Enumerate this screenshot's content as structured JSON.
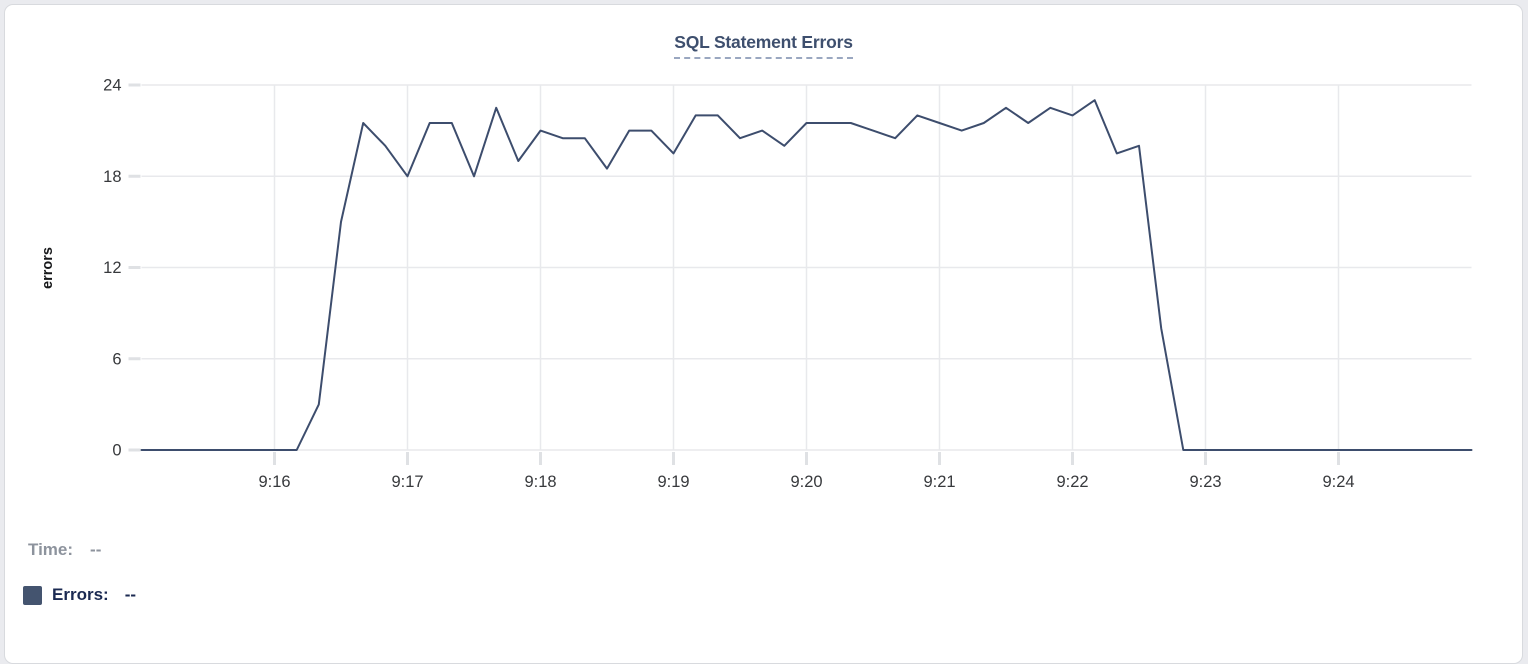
{
  "card": {
    "title": "SQL Statement Errors"
  },
  "tooltip": {
    "time_label": "Time:",
    "time_value": "--",
    "errors_label": "Errors:",
    "errors_value": "--"
  },
  "colors": {
    "line": "#3d4d6d",
    "swatch": "#44546f",
    "title": "#3e4f6e",
    "title_underline": "#9aa7c0",
    "grid": "#e8e9ec",
    "tick": "#dfe1e4",
    "axis_text": "#37393c",
    "time_text": "#8d939d",
    "errors_text": "#1b2a52",
    "card_border": "#d8dade",
    "card_bg": "#ffffff"
  },
  "chart_data": {
    "type": "line",
    "title": "SQL Statement Errors",
    "xlabel": "",
    "ylabel": "errors",
    "ylim": [
      0,
      24
    ],
    "yticks": [
      0,
      6,
      12,
      18,
      24
    ],
    "xticks": [
      "9:16",
      "9:17",
      "9:18",
      "9:19",
      "9:20",
      "9:21",
      "9:22",
      "9:23",
      "9:24"
    ],
    "x_range": [
      "9:15:00",
      "9:25:00"
    ],
    "grid": true,
    "legend_position": "bottom-left",
    "series": [
      {
        "name": "Errors",
        "color": "#3d4d6d",
        "x": [
          "9:15:00",
          "9:15:10",
          "9:15:20",
          "9:15:30",
          "9:15:40",
          "9:15:50",
          "9:16:00",
          "9:16:10",
          "9:16:20",
          "9:16:30",
          "9:16:40",
          "9:16:50",
          "9:17:00",
          "9:17:10",
          "9:17:20",
          "9:17:30",
          "9:17:40",
          "9:17:50",
          "9:18:00",
          "9:18:10",
          "9:18:20",
          "9:18:30",
          "9:18:40",
          "9:18:50",
          "9:19:00",
          "9:19:10",
          "9:19:20",
          "9:19:30",
          "9:19:40",
          "9:19:50",
          "9:20:00",
          "9:20:10",
          "9:20:20",
          "9:20:30",
          "9:20:40",
          "9:20:50",
          "9:21:00",
          "9:21:10",
          "9:21:20",
          "9:21:30",
          "9:21:40",
          "9:21:50",
          "9:22:00",
          "9:22:10",
          "9:22:20",
          "9:22:30",
          "9:22:40",
          "9:22:50",
          "9:23:00",
          "9:23:10",
          "9:23:20",
          "9:23:30",
          "9:23:40",
          "9:23:50",
          "9:24:00",
          "9:24:10",
          "9:24:20",
          "9:24:30",
          "9:24:40",
          "9:24:50",
          "9:25:00"
        ],
        "values": [
          0,
          0,
          0,
          0,
          0,
          0,
          0,
          0,
          3,
          15,
          21.5,
          20,
          18,
          21.5,
          21.5,
          18,
          22.5,
          19,
          21,
          20.5,
          20.5,
          18.5,
          21,
          21,
          19.5,
          22,
          22,
          20.5,
          21,
          20,
          21.5,
          21.5,
          21.5,
          21,
          20.5,
          22,
          21.5,
          21,
          21.5,
          22.5,
          21.5,
          22.5,
          22,
          23,
          19.5,
          20,
          8,
          0,
          0,
          0,
          0,
          0,
          0,
          0,
          0,
          0,
          0,
          0,
          0,
          0,
          0
        ]
      }
    ]
  }
}
